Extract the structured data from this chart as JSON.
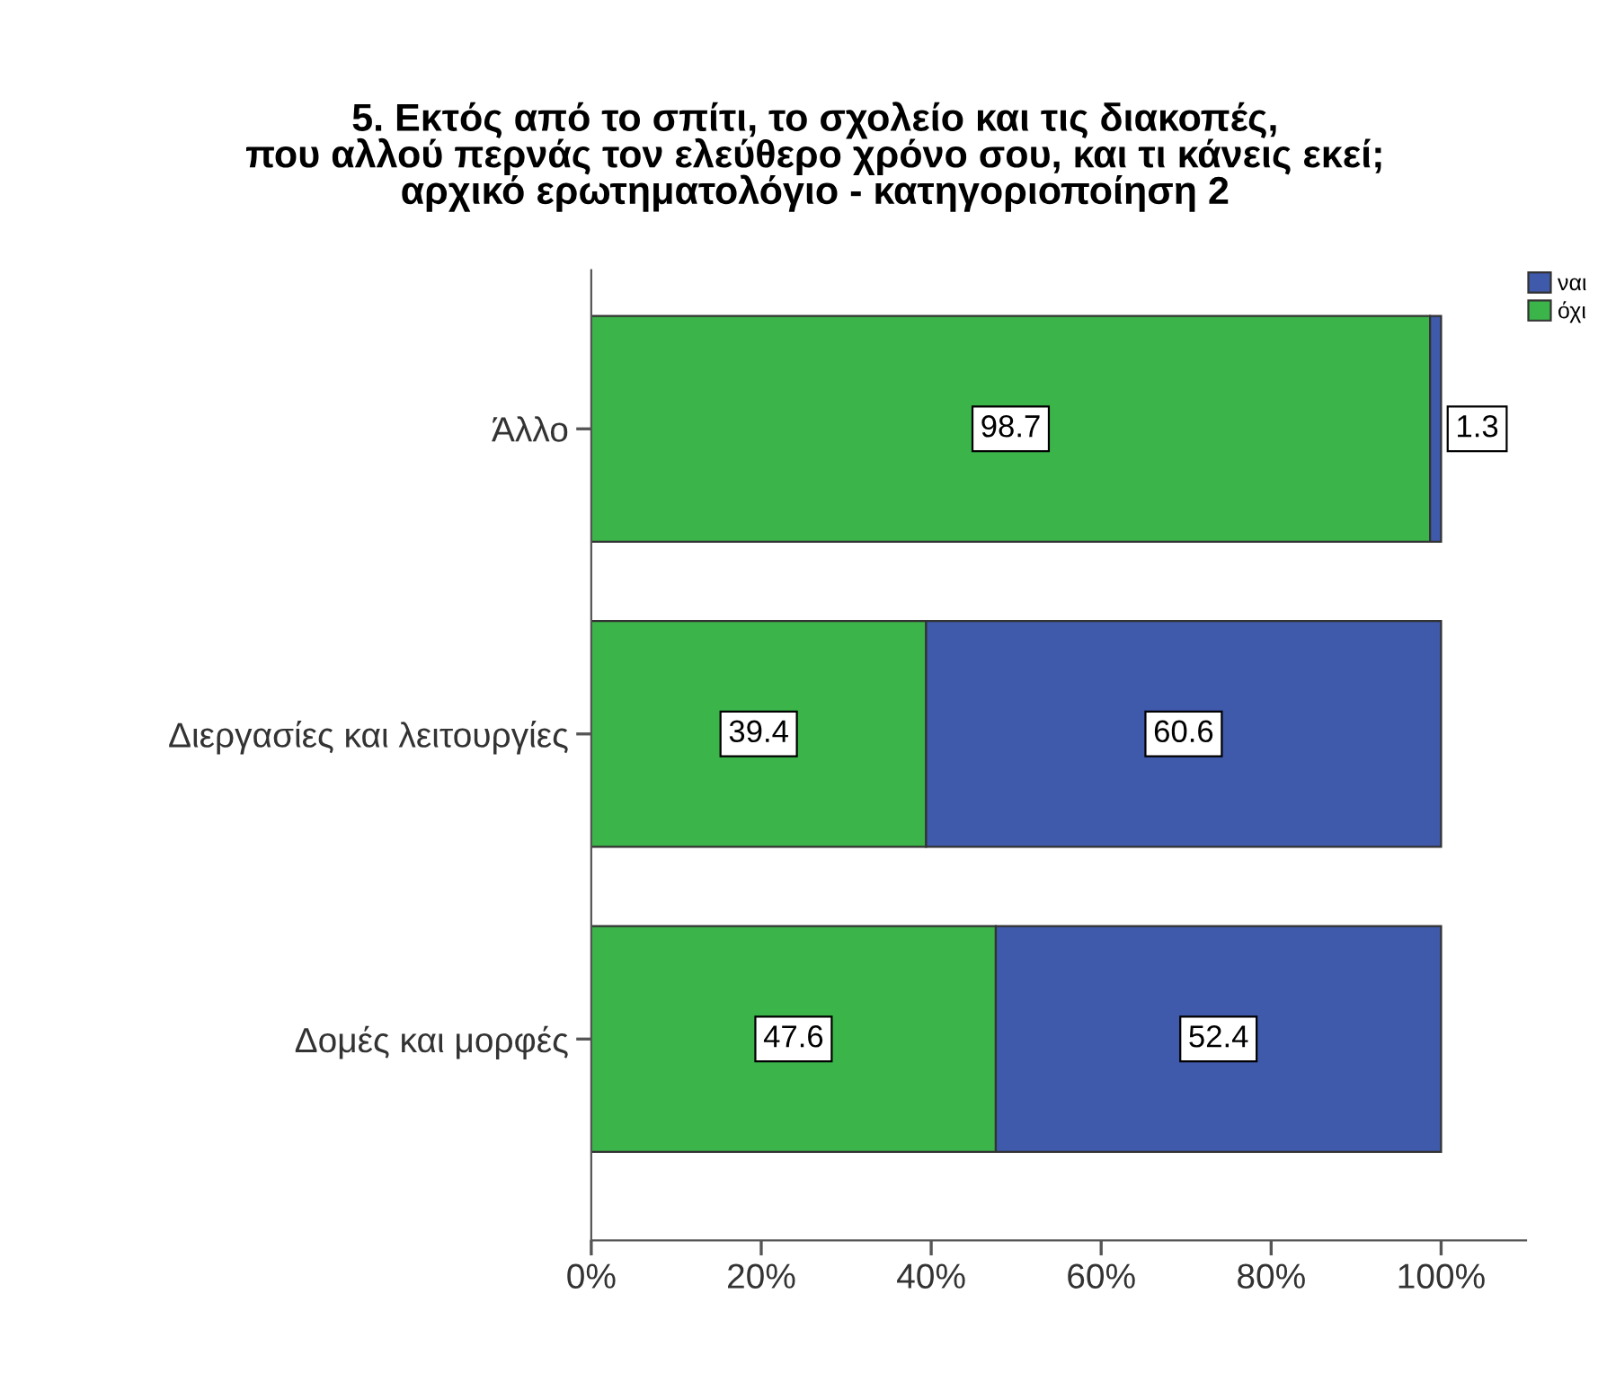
{
  "chart_data": {
    "type": "bar",
    "orientation": "horizontal",
    "stacked": true,
    "title": "5. Εκτός από το σπίτι, το σχολείο και τις διακοπές,\nπου αλλού περνάς τον ελεύθερο χρόνο σου, και τι κάνεις εκεί;\nαρχικό ερωτηματολόγιο - κατηγοριοποίηση 2",
    "categories": [
      "Άλλο",
      "Διεργασίες και λειτουργίες",
      "Δομές και μορφές"
    ],
    "series": [
      {
        "name": "όχι",
        "color": "#3bb54a",
        "values": [
          98.7,
          39.4,
          47.6
        ]
      },
      {
        "name": "ναι",
        "color": "#3f59ab",
        "values": [
          1.3,
          60.6,
          52.4
        ]
      }
    ],
    "xlim": [
      0,
      110
    ],
    "xticks": [
      {
        "value": 0,
        "label": "0%"
      },
      {
        "value": 20,
        "label": "20%"
      },
      {
        "value": 40,
        "label": "40%"
      },
      {
        "value": 60,
        "label": "60%"
      },
      {
        "value": 80,
        "label": "80%"
      },
      {
        "value": 100,
        "label": "100%"
      }
    ],
    "data_labels": true,
    "legend": "top right"
  }
}
